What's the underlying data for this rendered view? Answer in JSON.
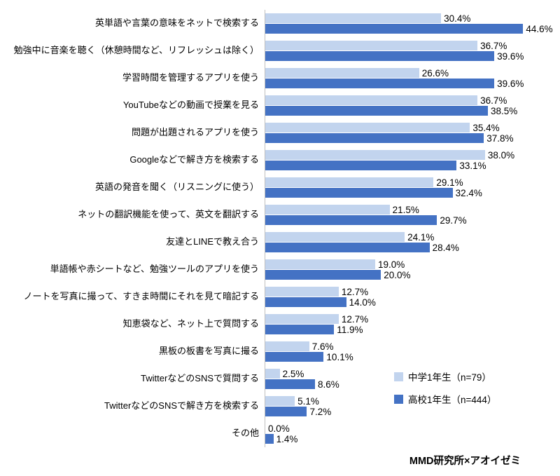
{
  "chart_data": {
    "type": "bar",
    "orientation": "horizontal",
    "title": "",
    "xlabel": "",
    "ylabel": "",
    "xlim": [
      0,
      50
    ],
    "grid": false,
    "legend_position": "bottom-right",
    "value_label_format": "0.0%",
    "categories": [
      "英単語や言葉の意味をネットで検索する",
      "勉強中に音楽を聴く（休憩時間など、リフレッシュは除く）",
      "学習時間を管理するアプリを使う",
      "YouTubeなどの動画で授業を見る",
      "問題が出題されるアプリを使う",
      "Googleなどで解き方を検索する",
      "英語の発音を聞く（リスニングに使う）",
      "ネットの翻訳機能を使って、英文を翻訳する",
      "友達とLINEで教え合う",
      "単語帳や赤シートなど、勉強ツールのアプリを使う",
      "ノートを写真に撮って、すきま時間にそれを見て暗記する",
      "知恵袋など、ネット上で質問する",
      "黒板の板書を写真に撮る",
      "TwitterなどのSNSで質問する",
      "TwitterなどのSNSで解き方を検索する",
      "その他"
    ],
    "series": [
      {
        "name": "中学1年生（n=79）",
        "color": "#c2d4ee",
        "values": [
          30.4,
          36.7,
          26.6,
          36.7,
          35.4,
          38.0,
          29.1,
          21.5,
          24.1,
          19.0,
          12.7,
          12.7,
          7.6,
          2.5,
          5.1,
          0.0
        ]
      },
      {
        "name": "高校1年生（n=444）",
        "color": "#4472c4",
        "values": [
          44.6,
          39.6,
          39.6,
          38.5,
          37.8,
          33.1,
          32.4,
          29.7,
          28.4,
          20.0,
          14.0,
          11.9,
          10.1,
          8.6,
          7.2,
          1.4
        ]
      }
    ],
    "axis_line_color": "#bfbfbf",
    "source": "MMD研究所×アオイゼミ"
  }
}
